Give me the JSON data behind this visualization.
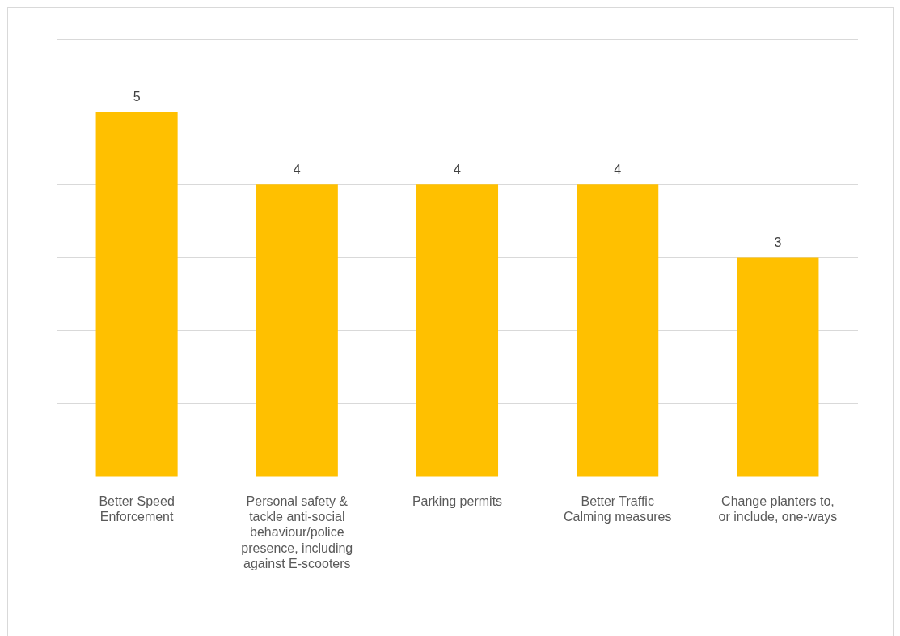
{
  "chart_data": {
    "type": "bar",
    "categories": [
      "Better Speed Enforcement",
      "Personal safety & tackle anti-social behaviour/police presence, including against E-scooters",
      "Parking permits",
      "Better Traffic Calming measures",
      "Change planters to, or include, one-ways"
    ],
    "values": [
      5,
      4,
      4,
      4,
      3
    ],
    "color": "#ffc000",
    "data_labels": true,
    "ylim": [
      0,
      6
    ],
    "yticks": [
      {
        "value": 0,
        "label": null
      },
      {
        "value": 1,
        "label": null
      },
      {
        "value": 2,
        "label": null
      },
      {
        "value": 3,
        "label": null
      },
      {
        "value": 4,
        "label": null
      },
      {
        "value": 5,
        "label": null
      },
      {
        "value": 6,
        "label": null
      }
    ],
    "grid": "y",
    "tick_labels": "x",
    "legend": false
  }
}
